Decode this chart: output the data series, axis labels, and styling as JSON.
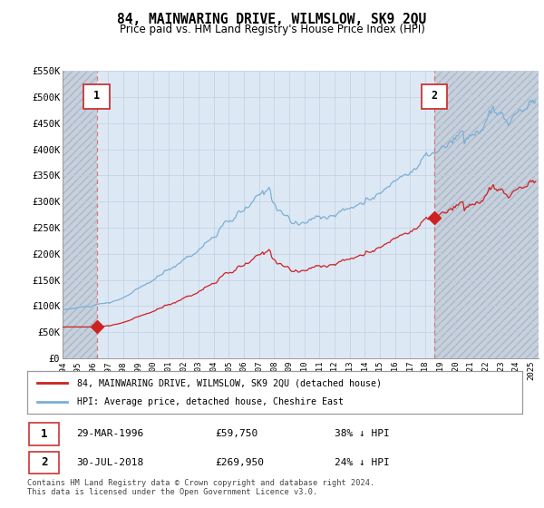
{
  "title": "84, MAINWARING DRIVE, WILMSLOW, SK9 2QU",
  "subtitle": "Price paid vs. HM Land Registry's House Price Index (HPI)",
  "legend_line1": "84, MAINWARING DRIVE, WILMSLOW, SK9 2QU (detached house)",
  "legend_line2": "HPI: Average price, detached house, Cheshire East",
  "sale1_date": "29-MAR-1996",
  "sale1_price": "£59,750",
  "sale1_pct": "38% ↓ HPI",
  "sale1_year": 1996.25,
  "sale1_value": 59750,
  "sale2_date": "30-JUL-2018",
  "sale2_price": "£269,950",
  "sale2_pct": "24% ↓ HPI",
  "sale2_year": 2018.583,
  "sale2_value": 269950,
  "footnote": "Contains HM Land Registry data © Crown copyright and database right 2024.\nThis data is licensed under the Open Government Licence v3.0.",
  "hpi_color": "#7bafd4",
  "property_color": "#cc2222",
  "dashed_line_color": "#dd6666",
  "background_plot": "#dde8f5",
  "background_hatch": "#c8d0dc",
  "ylim": [
    0,
    550000
  ],
  "xlim_start": 1994.0,
  "xlim_end": 2025.5,
  "yticks": [
    0,
    50000,
    100000,
    150000,
    200000,
    250000,
    300000,
    350000,
    400000,
    450000,
    500000,
    550000
  ],
  "ytick_labels": [
    "£0",
    "£50K",
    "£100K",
    "£150K",
    "£200K",
    "£250K",
    "£300K",
    "£350K",
    "£400K",
    "£450K",
    "£500K",
    "£550K"
  ],
  "xticks": [
    1994,
    1995,
    1996,
    1997,
    1998,
    1999,
    2000,
    2001,
    2002,
    2003,
    2004,
    2005,
    2006,
    2007,
    2008,
    2009,
    2010,
    2011,
    2012,
    2013,
    2014,
    2015,
    2016,
    2017,
    2018,
    2019,
    2020,
    2021,
    2022,
    2023,
    2024,
    2025
  ],
  "grid_color": "#c0cfe0",
  "box_edge_color": "#cc3333",
  "box_bg": "#ffffff"
}
